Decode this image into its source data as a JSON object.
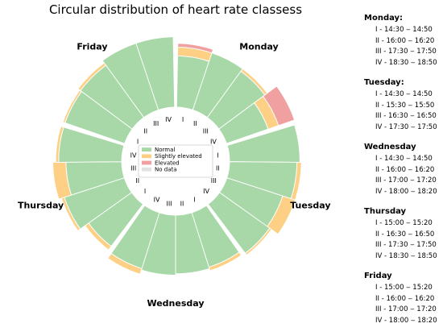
{
  "chart_data": {
    "type": "circular-stacked-bar",
    "title": "Circular distribution of heart rate classess",
    "days": [
      {
        "name": "Monday",
        "slots": [
          {
            "label": "I",
            "normal": 0.7,
            "slightly_elevated": 0.12,
            "elevated": 0.05
          },
          {
            "label": "II",
            "normal": 0.82,
            "slightly_elevated": 0,
            "elevated": 0
          },
          {
            "label": "III",
            "normal": 0.78,
            "slightly_elevated": 0.04,
            "elevated": 0
          },
          {
            "label": "IV",
            "normal": 0.6,
            "slightly_elevated": 0.15,
            "elevated": 0.23
          }
        ]
      },
      {
        "name": "Tuesday",
        "slots": [
          {
            "label": "I",
            "normal": 0.96,
            "slightly_elevated": 0,
            "elevated": 0
          },
          {
            "label": "II",
            "normal": 0.92,
            "slightly_elevated": 0.06,
            "elevated": 0
          },
          {
            "label": "III",
            "normal": 0.8,
            "slightly_elevated": 0.18,
            "elevated": 0
          },
          {
            "label": "IV",
            "normal": 0.84,
            "slightly_elevated": 0.03,
            "elevated": 0
          }
        ]
      },
      {
        "name": "Wednesday",
        "slots": [
          {
            "label": "I",
            "normal": 0.78,
            "slightly_elevated": 0.05,
            "elevated": 0
          },
          {
            "label": "II",
            "normal": 0.8,
            "slightly_elevated": 0,
            "elevated": 0
          },
          {
            "label": "III",
            "normal": 0.82,
            "slightly_elevated": 0,
            "elevated": 0
          },
          {
            "label": "IV",
            "normal": 0.8,
            "slightly_elevated": 0.08,
            "elevated": 0
          }
        ]
      },
      {
        "name": "Thursday",
        "slots": [
          {
            "label": "I",
            "normal": 0.72,
            "slightly_elevated": 0.06,
            "elevated": 0
          },
          {
            "label": "II",
            "normal": 0.86,
            "slightly_elevated": 0.04,
            "elevated": 0
          },
          {
            "label": "III",
            "normal": 0.76,
            "slightly_elevated": 0.18,
            "elevated": 0
          },
          {
            "label": "IV",
            "normal": 0.86,
            "slightly_elevated": 0.04,
            "elevated": 0
          }
        ]
      },
      {
        "name": "Friday",
        "slots": [
          {
            "label": "I",
            "normal": 0.86,
            "slightly_elevated": 0.03,
            "elevated": 0
          },
          {
            "label": "II",
            "normal": 0.88,
            "slightly_elevated": 0.04,
            "elevated": 0
          },
          {
            "label": "III",
            "normal": 0.96,
            "slightly_elevated": 0,
            "elevated": 0
          },
          {
            "label": "IV",
            "normal": 0.96,
            "slightly_elevated": 0,
            "elevated": 0
          }
        ]
      }
    ],
    "legend": {
      "placement": "center",
      "entries": [
        {
          "name": "Normal",
          "color": "#a8d8a8"
        },
        {
          "name": "Slightly elevated",
          "color": "#fdd085"
        },
        {
          "name": "Elevated",
          "color": "#f0a0a0"
        },
        {
          "name": "No data",
          "color": "#e2e2e2"
        }
      ]
    }
  },
  "schedule": [
    {
      "day": "Monday:",
      "slots": [
        "I - 14:30 ‒ 14:50",
        "II - 16:00 ‒ 16:20",
        "III - 17:30 ‒ 17:50",
        "IV - 18:30 ‒ 18:50"
      ]
    },
    {
      "day": "Tuesday:",
      "slots": [
        "I - 14:30 ‒ 14:50",
        "II - 15:30 ‒ 15:50",
        "III - 16:30 ‒ 16:50",
        "IV - 17:30 ‒ 17:50"
      ]
    },
    {
      "day": "Wednesday",
      "slots": [
        "I - 14:30 ‒ 14:50",
        "II - 16:00 ‒ 16:20",
        "III - 17:00 ‒ 17:20",
        "IV - 18:00 ‒ 18:20"
      ]
    },
    {
      "day": "Thursday",
      "slots": [
        "I - 15:00 ‒ 15:20",
        "II - 16:30 ‒ 16:50",
        "III - 17:30 ‒ 17:50",
        "IV - 18:30 ‒ 18:50"
      ]
    },
    {
      "day": "Friday",
      "slots": [
        "I - 15:00 ‒ 15:20",
        "II - 16:00 ‒ 16:20",
        "III - 17:00 ‒ 17:20",
        "IV - 18:00 ‒ 18:20"
      ]
    }
  ]
}
